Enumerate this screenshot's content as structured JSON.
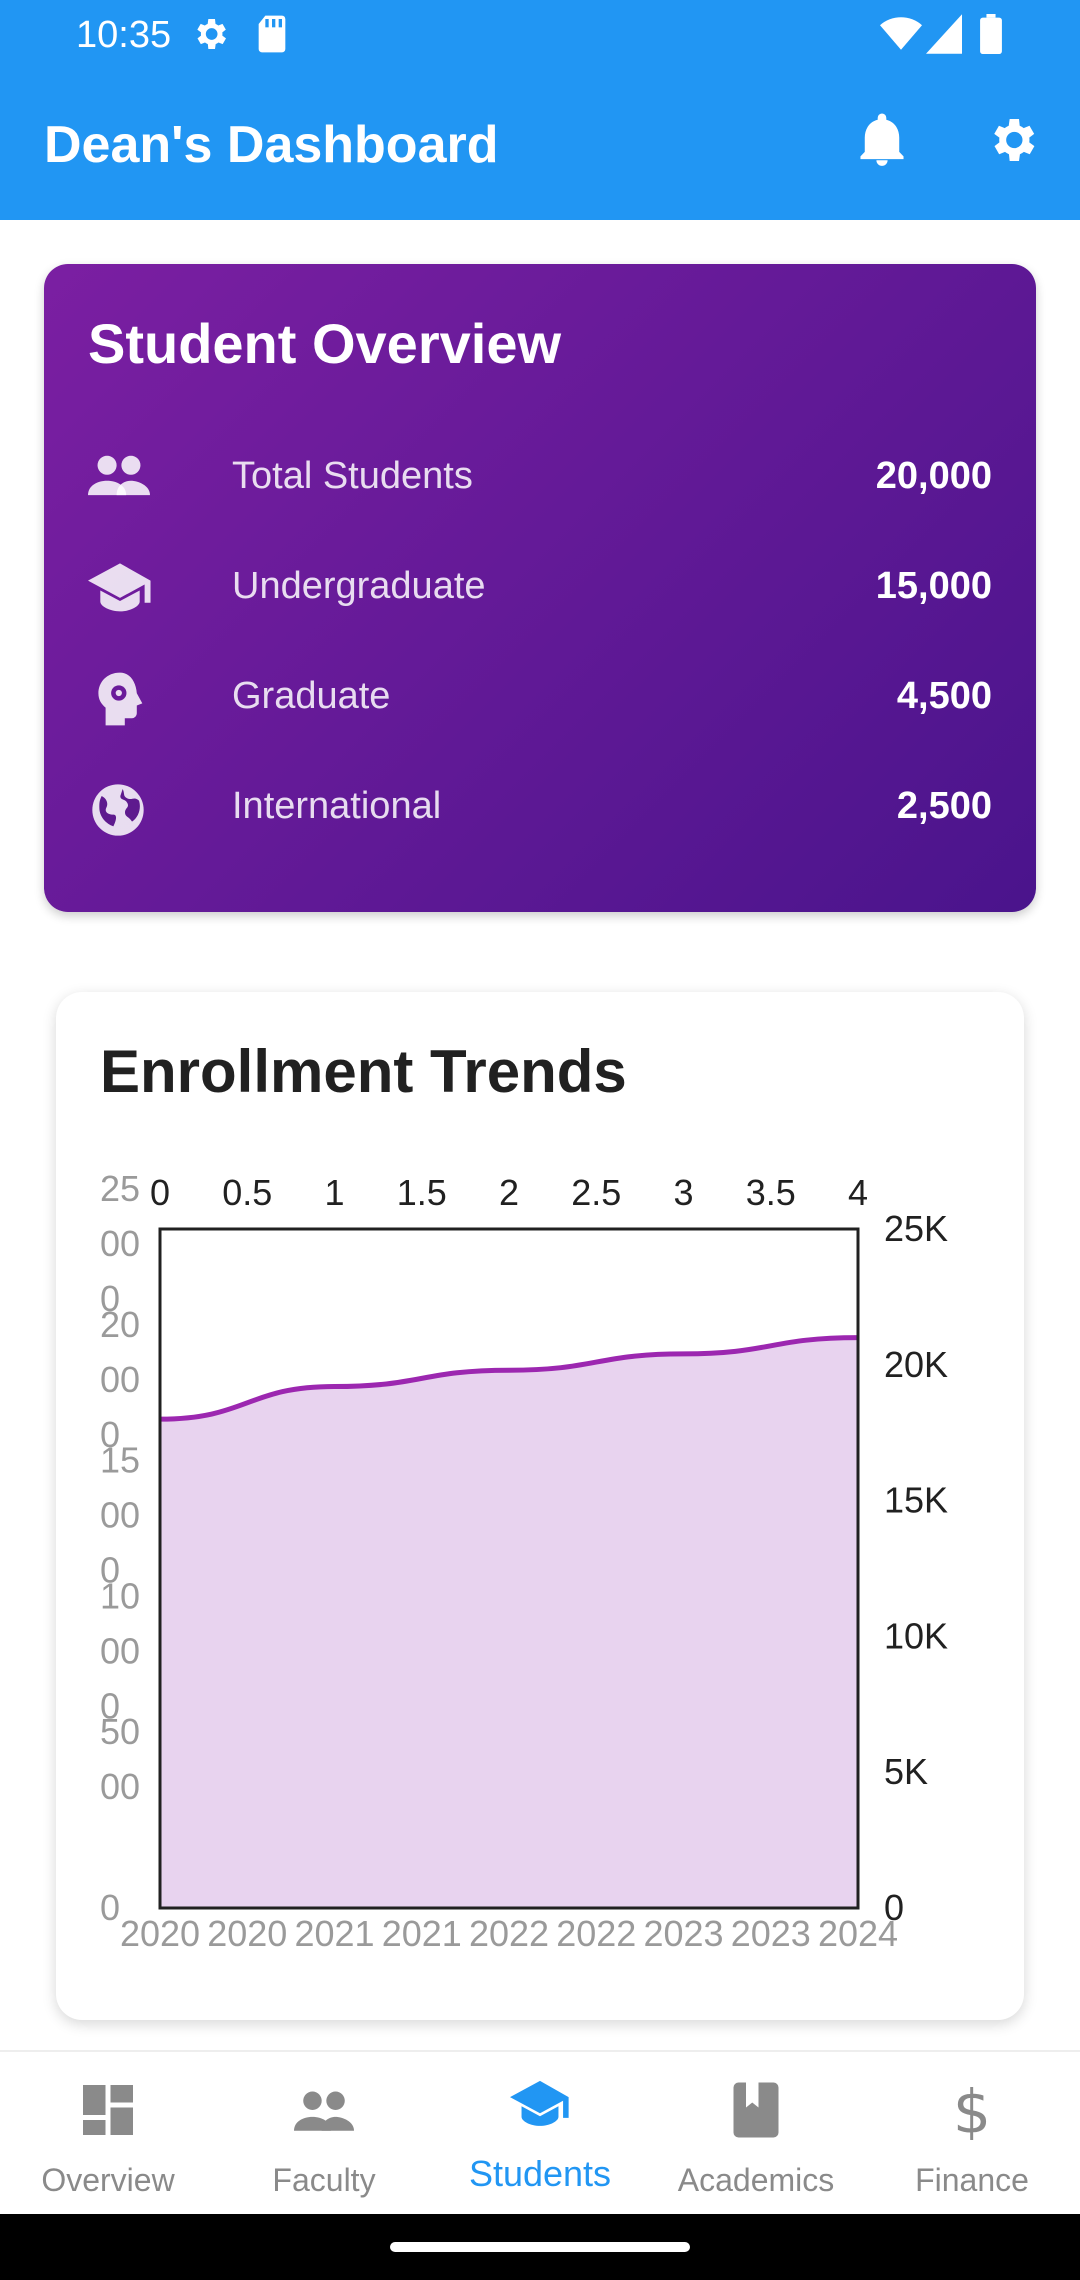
{
  "status_bar": {
    "time": "10:35"
  },
  "app_bar": {
    "title": "Dean's Dashboard"
  },
  "overview": {
    "title": "Student Overview",
    "stats": [
      {
        "label": "Total Students",
        "value": "20,000",
        "icon": "people-icon"
      },
      {
        "label": "Undergraduate",
        "value": "15,000",
        "icon": "graduation-cap-icon"
      },
      {
        "label": "Graduate",
        "value": "4,500",
        "icon": "head-gear-icon"
      },
      {
        "label": "International",
        "value": "2,500",
        "icon": "globe-icon"
      }
    ]
  },
  "trends": {
    "title": "Enrollment Trends"
  },
  "chart_data": {
    "type": "area",
    "title": "Enrollment Trends",
    "x": [
      0,
      1,
      2,
      3,
      4
    ],
    "values": [
      18000,
      19200,
      19800,
      20400,
      21000
    ],
    "top_ticks": [
      "0",
      "0.5",
      "1",
      "1.5",
      "2",
      "2.5",
      "3",
      "3.5",
      "4"
    ],
    "right_ticks": [
      "25K",
      "20K",
      "15K",
      "10K",
      "5K",
      "0"
    ],
    "left_ticks": [
      [
        "25",
        "00",
        "0"
      ],
      [
        "20",
        "00",
        "0"
      ],
      [
        "15",
        "00",
        "0"
      ],
      [
        "10",
        "00",
        "0"
      ],
      [
        "50",
        "00"
      ],
      [
        "0"
      ]
    ],
    "bottom_ticks": [
      "2020",
      "2020",
      "2021",
      "2021",
      "2022",
      "2022",
      "2023",
      "2023",
      "2024"
    ],
    "xlim": [
      0,
      4
    ],
    "ylim": [
      0,
      25000
    ],
    "line_color": "#9C27B0",
    "fill_color": "#E8D3EF"
  },
  "bottom_nav": {
    "items": [
      {
        "label": "Overview",
        "icon": "dashboard-icon"
      },
      {
        "label": "Faculty",
        "icon": "people-icon"
      },
      {
        "label": "Students",
        "icon": "graduation-cap-icon"
      },
      {
        "label": "Academics",
        "icon": "book-icon"
      },
      {
        "label": "Finance",
        "icon": "dollar-icon"
      }
    ],
    "active_label": "Students"
  },
  "colors": {
    "primary": "#2196F3",
    "card_gradient_start": "#7B1FA2",
    "card_gradient_end": "#4A148C"
  }
}
